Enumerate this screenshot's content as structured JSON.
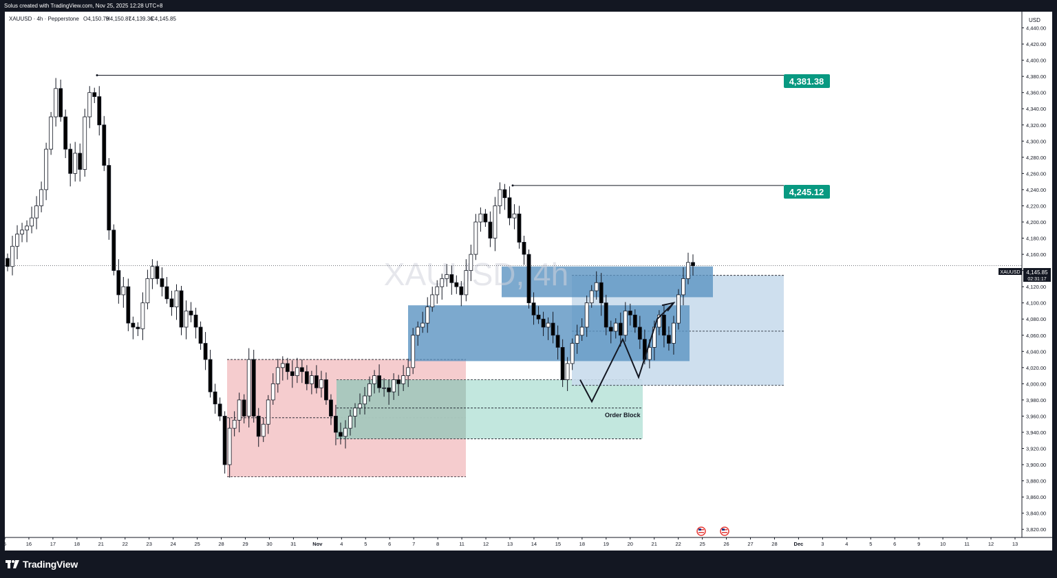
{
  "header": {
    "created_by": "Solus created with TradingView.com, Nov 25, 2025 12:28 UTC+8"
  },
  "legend": {
    "symbol_line": "XAUUSD · 4h · Pepperstone",
    "open": "O4,150.79",
    "high": "H4,150.87",
    "low": "L4,139.36",
    "close": "C4,145.85"
  },
  "watermark": "XAUUSD, 4h",
  "price_axis": {
    "currency": "USD",
    "min": 3810,
    "max": 4460,
    "ticks": [
      4440,
      4420,
      4400,
      4380,
      4360,
      4340,
      4320,
      4300,
      4280,
      4260,
      4240,
      4220,
      4200,
      4180,
      4160,
      4140,
      4120,
      4100,
      4080,
      4060,
      4040,
      4020,
      4000,
      3980,
      3960,
      3940,
      3920,
      3900,
      3880,
      3860,
      3840,
      3820
    ],
    "tick_labels": [
      "4,440.00",
      "4,420.00",
      "4,400.00",
      "4,380.00",
      "4,360.00",
      "4,340.00",
      "4,320.00",
      "4,300.00",
      "4,280.00",
      "4,260.00",
      "4,240.00",
      "4,220.00",
      "4,200.00",
      "4,180.00",
      "4,160.00",
      "4,140.00",
      "4,120.00",
      "4,100.00",
      "4,080.00",
      "4,060.00",
      "4,040.00",
      "4,020.00",
      "4,000.00",
      "3,980.00",
      "3,960.00",
      "3,940.00",
      "3,920.00",
      "3,900.00",
      "3,880.00",
      "3,860.00",
      "3,840.00",
      "3,820.00"
    ],
    "current_price_label": "4,145.85",
    "current_symbol_label": "XAUUSD",
    "countdown": "02:31:17"
  },
  "time_axis": {
    "labels": [
      "5",
      "16",
      "17",
      "18",
      "21",
      "22",
      "23",
      "24",
      "25",
      "28",
      "29",
      "30",
      "31",
      "Nov",
      "4",
      "5",
      "6",
      "7",
      "8",
      "11",
      "12",
      "13",
      "14",
      "15",
      "18",
      "19",
      "20",
      "21",
      "22",
      "25",
      "26",
      "27",
      "28",
      "Dec",
      "3",
      "4",
      "5",
      "6",
      "9",
      "10",
      "11",
      "12",
      "13"
    ]
  },
  "annotations": {
    "level_1": "4,381.38",
    "level_2": "4,245.12",
    "order_block": "Order Block"
  },
  "colors": {
    "bull": "#ffffff",
    "bear": "#000000",
    "level_badge": "#089981",
    "zone_red": "#f4c7c9",
    "zone_green": "#bfe6dc",
    "zone_blue": "#5b93c2",
    "zone_light_blue": "#c9dcec"
  },
  "chart_data": {
    "type": "candlestick",
    "symbol": "XAUUSD",
    "interval": "4h",
    "ylim": [
      3810,
      4460
    ],
    "key_levels": [
      4381.38,
      4245.12
    ],
    "close_price": 4145.85,
    "closes": [
      4145,
      4170,
      4185,
      4190,
      4195,
      4205,
      4220,
      4240,
      4290,
      4330,
      4365,
      4330,
      4290,
      4260,
      4285,
      4265,
      4330,
      4360,
      4355,
      4320,
      4270,
      4190,
      4140,
      4110,
      4120,
      4075,
      4070,
      4068,
      4100,
      4130,
      4145,
      4130,
      4120,
      4105,
      4095,
      4115,
      4070,
      4090,
      4085,
      4070,
      4050,
      4030,
      3990,
      3975,
      3960,
      3900,
      3945,
      3955,
      3980,
      3960,
      4030,
      3960,
      3935,
      3950,
      3980,
      4000,
      4020,
      4025,
      4015,
      4010,
      4020,
      4015,
      4000,
      4010,
      3995,
      4005,
      3980,
      3960,
      3940,
      3935,
      3945,
      3960,
      3970,
      3975,
      3985,
      4000,
      4010,
      3995,
      3995,
      3990,
      4005,
      4000,
      4010,
      4020,
      4060,
      4070,
      4075,
      4095,
      4110,
      4120,
      4130,
      4135,
      4125,
      4120,
      4110,
      4140,
      4160,
      4200,
      4210,
      4200,
      4180,
      4220,
      4240,
      4230,
      4205,
      4210,
      4175,
      4160,
      4100,
      4085,
      4080,
      4070,
      4075,
      4060,
      4045,
      4005,
      4025,
      4050,
      4060,
      4070,
      4100,
      4115,
      4125,
      4100,
      4070,
      4065,
      4075,
      4060,
      4090,
      4085,
      4070,
      4055,
      4030,
      4045,
      4070,
      4085,
      4060,
      4050,
      4075,
      4110,
      4130,
      4150,
      4145.85
    ]
  }
}
